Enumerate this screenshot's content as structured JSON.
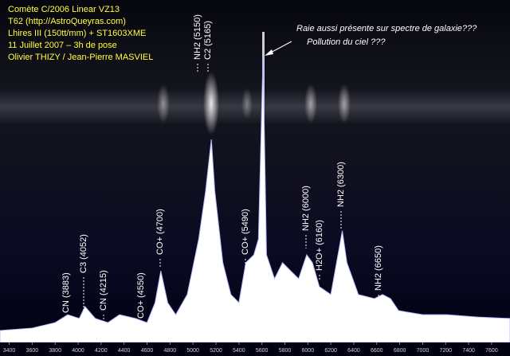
{
  "chart_data": {
    "type": "area",
    "header_lines": [
      "Comète C/2006 Linear VZ13",
      "T62 (http://AstroQueyras.com)",
      "Lhires III (150tt/mm) + ST1603XME",
      "11 Juillet 2007 – 3h de pose",
      "Olivier THIZY / Jean-Pierre MASVIEL"
    ],
    "notes": [
      "Raie aussi présente sur spectre de galaxie???",
      "Pollution du ciel ???"
    ],
    "annotations": [
      "CN (3883)",
      "C3 (4052)",
      "CN (4215)",
      "CO+ (4550)",
      "CO+ (4700)",
      "NH2 (5150)",
      "C2 (5165)",
      "CO+ (5490)",
      "NH2 (6000)",
      "H2O+ (6160)",
      "NH2 (6300)",
      "NH2 (6650)"
    ],
    "x": [
      3320,
      3600,
      3800,
      3910,
      4010,
      4060,
      4150,
      4260,
      4360,
      4500,
      4600,
      4670,
      4720,
      4780,
      4850,
      4950,
      5050,
      5110,
      5160,
      5190,
      5260,
      5330,
      5400,
      5460,
      5530,
      5570,
      5610,
      5640,
      5710,
      5780,
      5850,
      5920,
      5990,
      6040,
      6100,
      6200,
      6300,
      6340,
      6440,
      6580,
      6650,
      6720,
      6790,
      7000,
      7210,
      7480,
      7760
    ],
    "values": [
      3.5,
      4.2,
      5.8,
      8.1,
      7.0,
      10.5,
      7.0,
      5.8,
      8.1,
      7.0,
      5.8,
      11.6,
      20.9,
      11.6,
      8.1,
      14.0,
      30.2,
      44.2,
      59.3,
      44.2,
      23.3,
      14.0,
      11.6,
      23.3,
      25.6,
      30.2,
      83.7,
      25.6,
      18.6,
      23.3,
      20.9,
      18.6,
      25.6,
      23.3,
      16.3,
      14.0,
      32.6,
      23.3,
      14.0,
      12.8,
      14.0,
      12.8,
      9.3,
      8.1,
      8.1,
      7.4,
      7.0
    ],
    "color": "#ffffff",
    "xlim": [
      3320,
      7760
    ],
    "ylim": [
      0,
      100
    ],
    "xticks": [
      3400,
      3600,
      3800,
      4000,
      4200,
      4400,
      4600,
      4800,
      5000,
      5200,
      5400,
      5600,
      5800,
      6000,
      6200,
      6400,
      6600,
      6800,
      7000,
      7200,
      7400,
      7600
    ]
  }
}
